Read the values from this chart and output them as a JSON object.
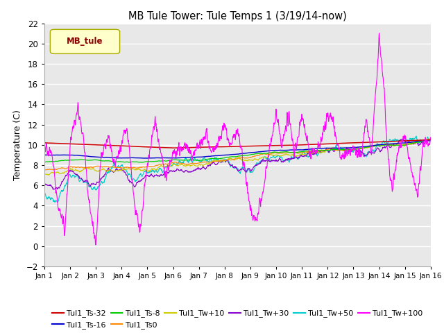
{
  "title": "MB Tule Tower: Tule Temps 1 (3/19/14-now)",
  "ylabel": "Temperature (C)",
  "xlim": [
    0,
    15
  ],
  "ylim": [
    -2,
    22
  ],
  "yticks": [
    -2,
    0,
    2,
    4,
    6,
    8,
    10,
    12,
    14,
    16,
    18,
    20,
    22
  ],
  "xtick_labels": [
    "Jan 1",
    "Jan 2",
    "Jan 3",
    "Jan 4",
    "Jan 5",
    "Jan 6",
    "Jan 7",
    "Jan 8",
    "Jan 9",
    "Jan 10",
    "Jan 11",
    "Jan 12",
    "Jan 13",
    "Jan 14",
    "Jan 15",
    "Jan 16"
  ],
  "legend_label": "MB_tule",
  "series_colors": {
    "Tul1_Ts-32": "#cc0000",
    "Tul1_Ts-16": "#0000cc",
    "Tul1_Ts-8": "#00cc00",
    "Tul1_Ts0": "#ff8800",
    "Tul1_Tw+10": "#cccc00",
    "Tul1_Tw+30": "#8800cc",
    "Tul1_Tw+50": "#00cccc",
    "Tul1_Tw+100": "#ff00ff"
  },
  "bg_color": "#e8e8e8",
  "fig_width": 6.4,
  "fig_height": 4.8,
  "dpi": 100
}
